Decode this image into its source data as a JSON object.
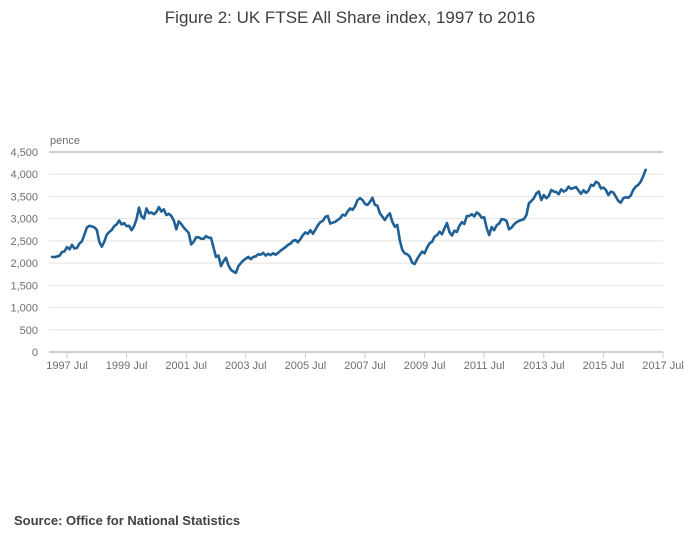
{
  "figure": {
    "title": "Figure 2: UK FTSE All Share index, 1997 to 2016",
    "source": "Source: Office for National Statistics"
  },
  "chart_data": {
    "type": "line",
    "title": "Figure 2: UK FTSE All Share index, 1997 to 2016",
    "xlabel": "",
    "ylabel": "pence",
    "ylim": [
      0,
      4500
    ],
    "y_ticks": [
      0,
      500,
      1000,
      1500,
      2000,
      2500,
      3000,
      3500,
      4000,
      4500
    ],
    "y_tick_labels": [
      "0",
      "500",
      "1,000",
      "1,500",
      "2,000",
      "2,500",
      "3,000",
      "3,500",
      "4,000",
      "4,500"
    ],
    "x_tick_labels": [
      "1997 Jul",
      "1999 Jul",
      "2001 Jul",
      "2003 Jul",
      "2005 Jul",
      "2007 Jul",
      "2009 Jul",
      "2011 Jul",
      "2013 Jul",
      "2015 Jul",
      "2017 Jul"
    ],
    "grid": "horizontal",
    "legend": "none",
    "colors": {
      "line": "#206095",
      "gridline": "#e4e4e4",
      "axis": "#9e9e9e",
      "tick_mark": "#c2cedf",
      "tick_text": "#6e6e70"
    },
    "series": [
      {
        "name": "UK FTSE All Share index",
        "color": "#206095",
        "frequency": "monthly",
        "start": "1997-01",
        "end": "2016-12",
        "values": [
          2140,
          2135,
          2150,
          2165,
          2250,
          2265,
          2360,
          2310,
          2410,
          2330,
          2340,
          2440,
          2490,
          2640,
          2800,
          2840,
          2825,
          2805,
          2750,
          2480,
          2370,
          2480,
          2640,
          2700,
          2745,
          2830,
          2870,
          2960,
          2870,
          2900,
          2830,
          2840,
          2740,
          2830,
          2990,
          3250,
          3050,
          3000,
          3230,
          3120,
          3140,
          3100,
          3150,
          3260,
          3160,
          3210,
          3080,
          3110,
          3060,
          2960,
          2760,
          2940,
          2880,
          2800,
          2740,
          2680,
          2420,
          2480,
          2580,
          2580,
          2550,
          2545,
          2610,
          2570,
          2570,
          2350,
          2140,
          2170,
          1930,
          2040,
          2120,
          1950,
          1850,
          1810,
          1780,
          1930,
          2000,
          2060,
          2100,
          2140,
          2090,
          2140,
          2150,
          2200,
          2190,
          2230,
          2170,
          2210,
          2180,
          2220,
          2190,
          2230,
          2280,
          2320,
          2360,
          2410,
          2440,
          2500,
          2520,
          2470,
          2540,
          2630,
          2690,
          2660,
          2740,
          2660,
          2750,
          2850,
          2920,
          2950,
          3040,
          3060,
          2890,
          2910,
          2930,
          2970,
          3010,
          3090,
          3070,
          3160,
          3230,
          3200,
          3280,
          3420,
          3460,
          3420,
          3330,
          3310,
          3380,
          3470,
          3310,
          3290,
          3120,
          3045,
          2970,
          3060,
          3120,
          2930,
          2820,
          2860,
          2520,
          2300,
          2220,
          2200,
          2145,
          2010,
          1980,
          2090,
          2180,
          2260,
          2220,
          2350,
          2445,
          2480,
          2595,
          2630,
          2705,
          2650,
          2780,
          2900,
          2700,
          2620,
          2730,
          2700,
          2840,
          2920,
          2880,
          3060,
          3060,
          3100,
          3050,
          3140,
          3100,
          3020,
          3030,
          2790,
          2630,
          2810,
          2740,
          2850,
          2890,
          2990,
          2980,
          2950,
          2760,
          2800,
          2870,
          2920,
          2950,
          2970,
          2990,
          3080,
          3345,
          3400,
          3460,
          3570,
          3610,
          3420,
          3530,
          3460,
          3510,
          3645,
          3610,
          3600,
          3550,
          3660,
          3610,
          3640,
          3720,
          3670,
          3690,
          3710,
          3630,
          3560,
          3640,
          3580,
          3630,
          3760,
          3740,
          3830,
          3800,
          3680,
          3700,
          3645,
          3530,
          3610,
          3590,
          3495,
          3400,
          3360,
          3460,
          3480,
          3470,
          3520,
          3645,
          3720,
          3760,
          3830,
          3950,
          4100
        ]
      }
    ]
  }
}
